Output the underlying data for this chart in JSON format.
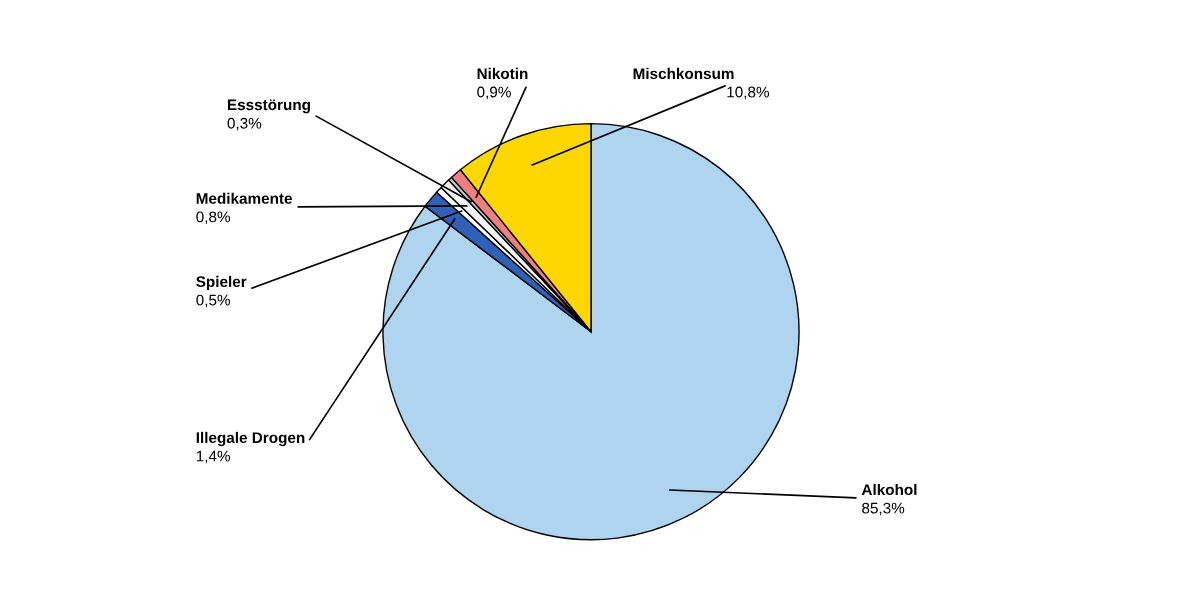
{
  "chart_data": {
    "type": "pie",
    "categories": [
      "Alkohol",
      "Illegale Drogen",
      "Spieler",
      "Medikamente",
      "Essstörung",
      "Nikotin",
      "Mischkonsum"
    ],
    "values": [
      85.3,
      1.4,
      0.5,
      0.8,
      0.3,
      0.9,
      10.8
    ],
    "value_labels": [
      "85,3%",
      "1,4%",
      "0,5%",
      "0,8%",
      "0,3%",
      "0,9%",
      "10,8%"
    ],
    "colors": [
      "#aed4f0",
      "#3060b8",
      "#ffffff",
      "#f4f4f4",
      "#c8c8c8",
      "#f08080",
      "#ffd700"
    ],
    "legend": false
  }
}
